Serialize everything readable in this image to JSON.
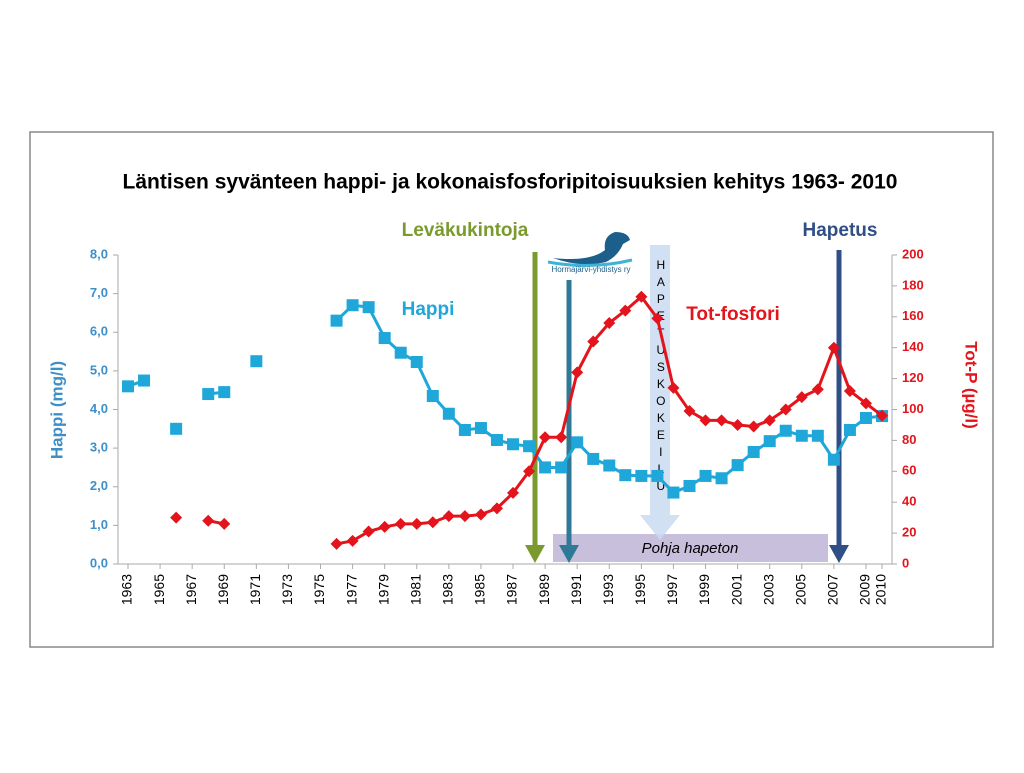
{
  "chart_data": {
    "type": "line",
    "title": "Läntisen syvänteen happi- ja kokonaisfosforipitoisuuksien kehitys  1963- 2010",
    "x": [
      1963,
      1964,
      1965,
      1966,
      1967,
      1968,
      1969,
      1970,
      1971,
      1972,
      1973,
      1974,
      1975,
      1976,
      1977,
      1978,
      1979,
      1980,
      1981,
      1982,
      1983,
      1984,
      1985,
      1986,
      1987,
      1988,
      1989,
      1990,
      1991,
      1992,
      1993,
      1994,
      1995,
      1996,
      1997,
      1998,
      1999,
      2000,
      2001,
      2002,
      2003,
      2004,
      2005,
      2006,
      2007,
      2008,
      2009,
      2010
    ],
    "xlim": [
      1963,
      2010
    ],
    "xticks": [
      1963,
      1965,
      1967,
      1969,
      1971,
      1973,
      1975,
      1977,
      1979,
      1981,
      1983,
      1985,
      1987,
      1989,
      1991,
      1993,
      1995,
      1997,
      1999,
      2001,
      2003,
      2005,
      2007,
      2009,
      2010
    ],
    "ylabel": "Happi (mg/l)",
    "ylim": [
      0,
      8
    ],
    "yticks": [
      {
        "value": 0,
        "label": "0,0"
      },
      {
        "value": 1,
        "label": "1,0"
      },
      {
        "value": 2,
        "label": "2,0"
      },
      {
        "value": 3,
        "label": "3,0"
      },
      {
        "value": 4,
        "label": "4,0"
      },
      {
        "value": 5,
        "label": "5,0"
      },
      {
        "value": 6,
        "label": "6,0"
      },
      {
        "value": 7,
        "label": "7,0"
      },
      {
        "value": 8,
        "label": "8,0"
      }
    ],
    "y2label": "Tot-P (µg/l)",
    "y2lim": [
      0,
      200
    ],
    "y2ticks": [
      0,
      20,
      40,
      60,
      80,
      100,
      120,
      140,
      160,
      180,
      200
    ],
    "series": [
      {
        "name": "Happi",
        "color": "#1ea7d8",
        "marker": "square",
        "values": [
          4.6,
          4.75,
          null,
          3.5,
          null,
          4.4,
          4.45,
          null,
          5.25,
          null,
          null,
          null,
          null,
          6.3,
          6.7,
          6.65,
          5.85,
          5.47,
          5.23,
          4.35,
          3.89,
          3.47,
          3.52,
          3.21,
          3.1,
          3.05,
          2.5,
          2.5,
          3.15,
          2.72,
          2.55,
          2.3,
          2.28,
          2.28,
          1.85,
          2.02,
          2.28,
          2.22,
          2.56,
          2.9,
          3.18,
          3.45,
          3.32,
          3.32,
          2.7,
          3.47,
          3.78,
          3.83
        ]
      },
      {
        "name": "Tot-fosfori",
        "color": "#e3141b",
        "marker": "diamond",
        "axis": "y2",
        "values": [
          null,
          null,
          null,
          30,
          null,
          28,
          26,
          null,
          null,
          null,
          null,
          null,
          null,
          13,
          15,
          21,
          24,
          26,
          26,
          27,
          31,
          31,
          32,
          36,
          46,
          60,
          82,
          82,
          124,
          144,
          156,
          164,
          173,
          159,
          114,
          99,
          93,
          93,
          90,
          89,
          93,
          100,
          108,
          113,
          140,
          112,
          104,
          96
        ]
      }
    ],
    "annotations": [
      "Leväkukintoja",
      "Hapetus",
      "HAPETUSKOKEILU",
      "Pohja hapeton"
    ],
    "logo_text": "Hormajärvi-yhdistys ry"
  }
}
